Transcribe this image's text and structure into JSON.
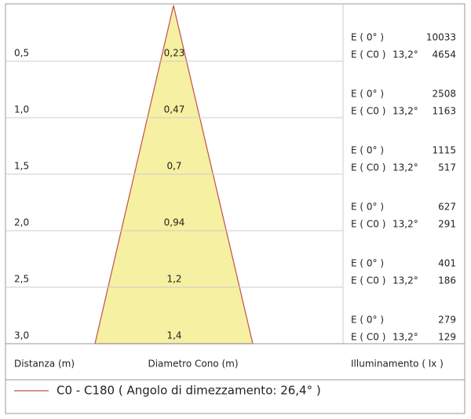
{
  "rows": [
    {
      "distance": "0,5",
      "diameter": "0,23",
      "e0_label": "E ( 0° )",
      "e0": "10033",
      "ec0_label": "E ( C0 )",
      "angle": "13,2°",
      "ec0": "4654"
    },
    {
      "distance": "1,0",
      "diameter": "0,47",
      "e0_label": "E ( 0° )",
      "e0": "2508",
      "ec0_label": "E ( C0 )",
      "angle": "13,2°",
      "ec0": "1163"
    },
    {
      "distance": "1,5",
      "diameter": "0,7",
      "e0_label": "E ( 0° )",
      "e0": "1115",
      "ec0_label": "E ( C0 )",
      "angle": "13,2°",
      "ec0": "517"
    },
    {
      "distance": "2,0",
      "diameter": "0,94",
      "e0_label": "E ( 0° )",
      "e0": "627",
      "ec0_label": "E ( C0 )",
      "angle": "13,2°",
      "ec0": "291"
    },
    {
      "distance": "2,5",
      "diameter": "1,2",
      "e0_label": "E ( 0° )",
      "e0": "401",
      "ec0_label": "E ( C0 )",
      "angle": "13,2°",
      "ec0": "186"
    },
    {
      "distance": "3,0",
      "diameter": "1,4",
      "e0_label": "E ( 0° )",
      "e0": "279",
      "ec0_label": "E ( C0 )",
      "angle": "13,2°",
      "ec0": "129"
    }
  ],
  "footer": {
    "distance": "Distanza (m)",
    "diameter": "Diametro Cono (m)",
    "illuminance": "Illuminamento ( lx )"
  },
  "legend": "C0 - C180  ( Angolo di dimezzamento: 26,4° )"
}
